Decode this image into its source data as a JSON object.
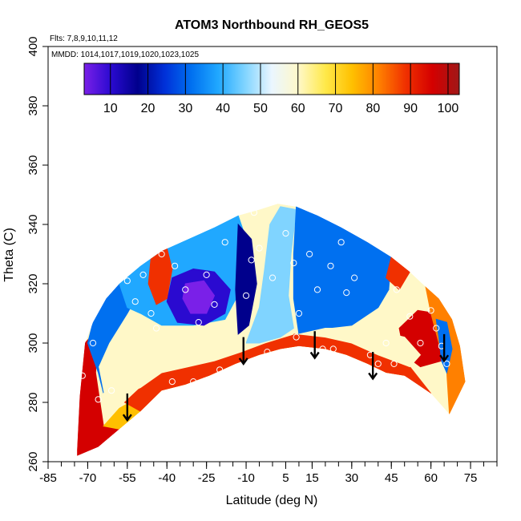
{
  "chart_data": {
    "type": "heatmap",
    "title": "ATOM3 Northbound RH_GEOS5",
    "flights_note": "Flts: 7,8,9,10,11,12",
    "dates_note": "MMDD: 1014,1017,1019,1020,1023,1025",
    "xlabel": "Latitude (deg N)",
    "ylabel": "Theta (C)",
    "xlim": [
      -85,
      85
    ],
    "ylim": [
      260,
      400
    ],
    "x_ticks": [
      -85,
      -70,
      -55,
      -40,
      -25,
      -10,
      5,
      15,
      30,
      45,
      60,
      75
    ],
    "y_ticks": [
      260,
      280,
      300,
      320,
      340,
      360,
      380,
      400
    ],
    "colorbar": {
      "range": [
        3,
        103
      ],
      "ticks": [
        10,
        20,
        30,
        40,
        50,
        60,
        70,
        80,
        90,
        100
      ],
      "colors": [
        "#7a20e8",
        "#2a0ad0",
        "#00008c",
        "#0030d8",
        "#0070f0",
        "#20a8ff",
        "#80d4ff",
        "#eaf6ff",
        "#fff8c8",
        "#ffe94a",
        "#ffc000",
        "#ff8000",
        "#f03000",
        "#d40000",
        "#a01818"
      ]
    },
    "field_outline": [
      [
        -74,
        264
      ],
      [
        -73,
        282
      ],
      [
        -71,
        300
      ],
      [
        -68,
        307
      ],
      [
        -63,
        315
      ],
      [
        -58,
        320
      ],
      [
        -50,
        326
      ],
      [
        -42,
        331
      ],
      [
        -32,
        335
      ],
      [
        -22,
        339
      ],
      [
        -13,
        343
      ],
      [
        -5,
        345
      ],
      [
        2,
        347
      ],
      [
        9,
        346
      ],
      [
        17,
        343
      ],
      [
        26,
        339
      ],
      [
        36,
        334
      ],
      [
        45,
        329
      ],
      [
        52,
        324
      ],
      [
        58,
        319
      ],
      [
        63,
        315
      ],
      [
        68,
        308
      ],
      [
        71,
        299
      ],
      [
        73,
        287
      ],
      [
        67,
        276
      ],
      [
        60,
        283
      ],
      [
        50,
        289
      ],
      [
        43,
        290
      ],
      [
        36,
        293
      ],
      [
        28,
        296
      ],
      [
        20,
        298
      ],
      [
        10,
        299
      ],
      [
        3,
        298
      ],
      [
        -5,
        296
      ],
      [
        -14,
        293
      ],
      [
        -24,
        289
      ],
      [
        -33,
        286
      ],
      [
        -42,
        284
      ],
      [
        -50,
        277
      ],
      [
        -58,
        271
      ],
      [
        -66,
        265
      ],
      [
        -74,
        262
      ]
    ],
    "regions": [
      {
        "name": "southern-humid-edge",
        "value": 92,
        "polygon": [
          [
            -74,
            264
          ],
          [
            -73,
            282
          ],
          [
            -71,
            300
          ],
          [
            -66,
            305
          ],
          [
            -67,
            290
          ],
          [
            -64,
            272
          ],
          [
            -58,
            271
          ],
          [
            -66,
            265
          ],
          [
            -74,
            262
          ]
        ]
      },
      {
        "name": "lower-band",
        "value": 75,
        "polygon": [
          [
            -64,
            272
          ],
          [
            -58,
            278
          ],
          [
            -50,
            282
          ],
          [
            -40,
            288
          ],
          [
            -30,
            291
          ],
          [
            -20,
            293
          ],
          [
            -10,
            296
          ],
          [
            0,
            298
          ],
          [
            10,
            300
          ],
          [
            20,
            299
          ],
          [
            30,
            295
          ],
          [
            40,
            293
          ],
          [
            50,
            289
          ],
          [
            43,
            290
          ],
          [
            36,
            293
          ],
          [
            28,
            296
          ],
          [
            20,
            298
          ],
          [
            10,
            299
          ],
          [
            3,
            298
          ],
          [
            -5,
            296
          ],
          [
            -14,
            293
          ],
          [
            -24,
            289
          ],
          [
            -33,
            286
          ],
          [
            -42,
            284
          ],
          [
            -50,
            277
          ],
          [
            -58,
            271
          ]
        ]
      },
      {
        "name": "lower-orange-strip",
        "value": 83,
        "polygon": [
          [
            -50,
            277
          ],
          [
            -42,
            284
          ],
          [
            -33,
            286
          ],
          [
            -24,
            289
          ],
          [
            -14,
            293
          ],
          [
            -5,
            296
          ],
          [
            3,
            298
          ],
          [
            10,
            299
          ],
          [
            20,
            298
          ],
          [
            28,
            296
          ],
          [
            36,
            293
          ],
          [
            43,
            290
          ],
          [
            50,
            289
          ],
          [
            60,
            283
          ],
          [
            52,
            292
          ],
          [
            40,
            296
          ],
          [
            30,
            300
          ],
          [
            20,
            302
          ],
          [
            8,
            303
          ],
          [
            -3,
            300
          ],
          [
            -12,
            297
          ],
          [
            -22,
            294
          ],
          [
            -32,
            292
          ],
          [
            -42,
            290
          ],
          [
            -50,
            285
          ],
          [
            -56,
            280
          ]
        ]
      },
      {
        "name": "southern-mid-blue",
        "value": 32,
        "polygon": [
          [
            -68,
            307
          ],
          [
            -63,
            315
          ],
          [
            -58,
            320
          ],
          [
            -50,
            318
          ],
          [
            -55,
            310
          ],
          [
            -62,
            300
          ],
          [
            -66,
            292
          ],
          [
            -64,
            283
          ],
          [
            -66,
            290
          ],
          [
            -70,
            300
          ]
        ]
      },
      {
        "name": "southern-pale-band",
        "value": 58,
        "polygon": [
          [
            -64,
            283
          ],
          [
            -58,
            290
          ],
          [
            -50,
            298
          ],
          [
            -40,
            302
          ],
          [
            -30,
            300
          ],
          [
            -20,
            298
          ],
          [
            -10,
            303
          ],
          [
            0,
            304
          ],
          [
            8,
            303
          ],
          [
            -3,
            300
          ],
          [
            -12,
            297
          ],
          [
            -22,
            294
          ],
          [
            -32,
            292
          ],
          [
            -42,
            290
          ],
          [
            -50,
            285
          ],
          [
            -58,
            282
          ]
        ]
      },
      {
        "name": "south-upper-blue",
        "value": 38,
        "polygon": [
          [
            -58,
            320
          ],
          [
            -50,
            326
          ],
          [
            -42,
            331
          ],
          [
            -32,
            335
          ],
          [
            -22,
            339
          ],
          [
            -13,
            343
          ],
          [
            -8,
            330
          ],
          [
            -12,
            318
          ],
          [
            -18,
            308
          ],
          [
            -30,
            306
          ],
          [
            -42,
            306
          ],
          [
            -50,
            310
          ],
          [
            -55,
            312
          ]
        ]
      },
      {
        "name": "dry-core-south",
        "value": 12,
        "polygon": [
          [
            -38,
            322
          ],
          [
            -30,
            325
          ],
          [
            -22,
            324
          ],
          [
            -16,
            318
          ],
          [
            -18,
            310
          ],
          [
            -26,
            306
          ],
          [
            -36,
            307
          ],
          [
            -40,
            314
          ]
        ]
      },
      {
        "name": "driest-core",
        "value": 6,
        "polygon": [
          [
            -33,
            320
          ],
          [
            -26,
            321
          ],
          [
            -22,
            316
          ],
          [
            -25,
            310
          ],
          [
            -31,
            310
          ],
          [
            -34,
            315
          ]
        ]
      },
      {
        "name": "humid-tongue-south",
        "value": 88,
        "polygon": [
          [
            -46,
            329
          ],
          [
            -40,
            332
          ],
          [
            -38,
            325
          ],
          [
            -40,
            315
          ],
          [
            -44,
            313
          ],
          [
            -47,
            320
          ]
        ]
      },
      {
        "name": "central-pale-plume",
        "value": 48,
        "polygon": [
          [
            -10,
            300
          ],
          [
            -5,
            312
          ],
          [
            -3,
            325
          ],
          [
            -1,
            340
          ],
          [
            3,
            346
          ],
          [
            9,
            345
          ],
          [
            7,
            330
          ],
          [
            6,
            316
          ],
          [
            8,
            305
          ],
          [
            3,
            302
          ],
          [
            -5,
            300
          ]
        ]
      },
      {
        "name": "central-dark",
        "value": 18,
        "polygon": [
          [
            -8,
            335
          ],
          [
            -6,
            320
          ],
          [
            -9,
            306
          ],
          [
            -13,
            303
          ],
          [
            -14,
            318
          ],
          [
            -13,
            340
          ]
        ]
      },
      {
        "name": "northern-dry-core",
        "value": 12,
        "polygon": [
          [
            12,
            330
          ],
          [
            20,
            335
          ],
          [
            30,
            333
          ],
          [
            40,
            326
          ],
          [
            44,
            318
          ],
          [
            36,
            312
          ],
          [
            26,
            310
          ],
          [
            16,
            314
          ],
          [
            12,
            322
          ]
        ]
      },
      {
        "name": "northern-mid-blue",
        "value": 34,
        "polygon": [
          [
            9,
            346
          ],
          [
            17,
            343
          ],
          [
            26,
            339
          ],
          [
            36,
            334
          ],
          [
            45,
            329
          ],
          [
            44,
            318
          ],
          [
            40,
            312
          ],
          [
            30,
            306
          ],
          [
            20,
            305
          ],
          [
            10,
            303
          ],
          [
            8,
            315
          ],
          [
            8,
            330
          ]
        ]
      },
      {
        "name": "north-humid-tongue",
        "value": 85,
        "polygon": [
          [
            45,
            329
          ],
          [
            52,
            324
          ],
          [
            48,
            318
          ],
          [
            43,
            322
          ]
        ]
      },
      {
        "name": "north-humid-blob",
        "value": 95,
        "polygon": [
          [
            48,
            305
          ],
          [
            55,
            311
          ],
          [
            62,
            310
          ],
          [
            66,
            302
          ],
          [
            64,
            294
          ],
          [
            56,
            292
          ],
          [
            50,
            296
          ]
        ]
      },
      {
        "name": "north-edge-orange",
        "value": 80,
        "polygon": [
          [
            58,
            319
          ],
          [
            63,
            315
          ],
          [
            68,
            308
          ],
          [
            71,
            299
          ],
          [
            73,
            287
          ],
          [
            67,
            276
          ],
          [
            66,
            290
          ],
          [
            63,
            300
          ],
          [
            60,
            310
          ]
        ]
      },
      {
        "name": "north-edge-blue",
        "value": 35,
        "polygon": [
          [
            62,
            308
          ],
          [
            66,
            307
          ],
          [
            68,
            298
          ],
          [
            66,
            290
          ],
          [
            64,
            294
          ],
          [
            63,
            302
          ]
        ]
      },
      {
        "name": "north-pale-band",
        "value": 60,
        "polygon": [
          [
            20,
            302
          ],
          [
            30,
            300
          ],
          [
            40,
            296
          ],
          [
            52,
            292
          ],
          [
            56,
            296
          ],
          [
            50,
            302
          ],
          [
            40,
            304
          ],
          [
            30,
            305
          ],
          [
            20,
            305
          ],
          [
            10,
            303
          ]
        ]
      }
    ],
    "observations": [
      [
        -55,
        321
      ],
      [
        -52,
        314
      ],
      [
        -49,
        323
      ],
      [
        -46,
        310
      ],
      [
        -44,
        305
      ],
      [
        -42,
        330
      ],
      [
        -37,
        326
      ],
      [
        -33,
        318
      ],
      [
        -28,
        307
      ],
      [
        -25,
        323
      ],
      [
        -22,
        313
      ],
      [
        -18,
        334
      ],
      [
        -10,
        316
      ],
      [
        -8,
        328
      ],
      [
        -7,
        344
      ],
      [
        -5,
        332
      ],
      [
        0,
        322
      ],
      [
        5,
        337
      ],
      [
        8,
        327
      ],
      [
        10,
        310
      ],
      [
        14,
        330
      ],
      [
        17,
        318
      ],
      [
        19,
        298
      ],
      [
        22,
        326
      ],
      [
        26,
        334
      ],
      [
        28,
        317
      ],
      [
        31,
        322
      ],
      [
        37,
        296
      ],
      [
        40,
        293
      ],
      [
        43,
        300
      ],
      [
        47,
        318
      ],
      [
        52,
        309
      ],
      [
        56,
        300
      ],
      [
        58,
        322
      ],
      [
        60,
        311
      ],
      [
        62,
        305
      ],
      [
        64,
        299
      ],
      [
        66,
        293
      ],
      [
        -70,
        306
      ],
      [
        -72,
        289
      ],
      [
        -68,
        300
      ],
      [
        -66,
        281
      ],
      [
        -61,
        284
      ],
      [
        -38,
        287
      ],
      [
        -30,
        287
      ],
      [
        -20,
        291
      ],
      [
        -2,
        297
      ],
      [
        9,
        302
      ],
      [
        23,
        298
      ],
      [
        46,
        293
      ]
    ],
    "arrows": [
      {
        "lat": -55,
        "theta_top": 283,
        "theta_tip": 274
      },
      {
        "lat": -11,
        "theta_top": 302,
        "theta_tip": 293
      },
      {
        "lat": 16,
        "theta_top": 304,
        "theta_tip": 295
      },
      {
        "lat": 38,
        "theta_top": 297,
        "theta_tip": 288
      },
      {
        "lat": 65,
        "theta_top": 303,
        "theta_tip": 294
      }
    ]
  }
}
